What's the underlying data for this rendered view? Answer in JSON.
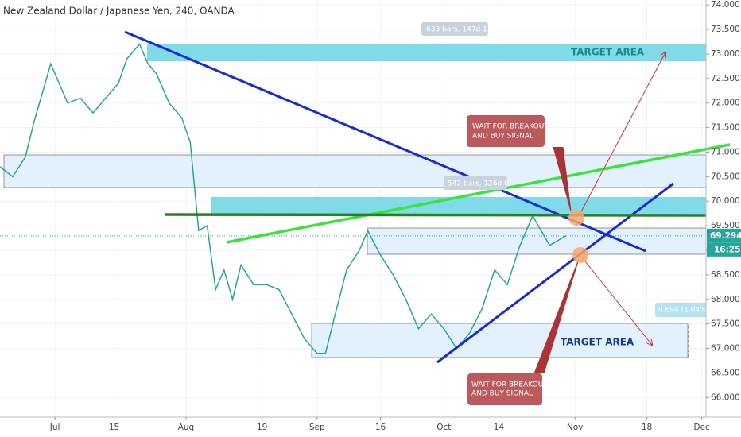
{
  "chart_data": {
    "type": "line",
    "title": "New Zealand Dollar / Japanese Yen, 240, OANDA",
    "color": "#26a69a",
    "x": [
      -13,
      -10,
      -7,
      -5,
      -3,
      -1,
      1,
      3,
      6,
      9,
      12,
      15,
      17,
      20,
      22,
      24,
      27,
      30,
      32,
      34,
      36,
      38,
      40,
      42,
      44,
      47,
      50,
      53,
      56,
      59,
      62,
      64,
      66,
      69,
      72,
      74,
      77,
      80,
      83,
      86,
      89,
      92,
      95,
      98,
      101,
      104,
      107,
      110,
      113,
      115,
      117,
      119,
      121
    ],
    "values": [
      70.7,
      70.5,
      70.9,
      71.6,
      72.2,
      72.8,
      72.4,
      72.0,
      72.1,
      71.8,
      72.1,
      72.4,
      72.9,
      73.2,
      72.8,
      72.6,
      72.0,
      71.7,
      71.2,
      69.4,
      69.5,
      68.2,
      68.6,
      68.0,
      68.7,
      68.3,
      68.3,
      68.2,
      67.7,
      67.2,
      66.9,
      66.9,
      67.6,
      68.6,
      69.0,
      69.4,
      68.9,
      68.5,
      68.0,
      67.4,
      67.7,
      67.4,
      67.0,
      67.3,
      67.8,
      68.6,
      68.3,
      69.1,
      69.7,
      69.4,
      69.1,
      69.2,
      69.3
    ],
    "xlim": [
      -13,
      154
    ],
    "xticks": [
      {
        "value": 0,
        "label": "Jul"
      },
      {
        "value": 14,
        "label": "15"
      },
      {
        "value": 31,
        "label": "Aug"
      },
      {
        "value": 49,
        "label": "19"
      },
      {
        "value": 62,
        "label": "Sep"
      },
      {
        "value": 77,
        "label": "16"
      },
      {
        "value": 92,
        "label": "Oct"
      },
      {
        "value": 105,
        "label": "14"
      },
      {
        "value": 123,
        "label": "Nov"
      },
      {
        "value": 140,
        "label": "18"
      },
      {
        "value": 153,
        "label": "Dec"
      }
    ],
    "ylim": [
      65.6,
      74.1
    ],
    "yticks": [
      {
        "value": 66,
        "label": "66.000"
      },
      {
        "value": 66.5,
        "label": "66.500"
      },
      {
        "value": 67,
        "label": "67.000"
      },
      {
        "value": 67.5,
        "label": "67.500"
      },
      {
        "value": 68,
        "label": "68.000"
      },
      {
        "value": 68.5,
        "label": "68.500"
      },
      {
        "value": 69,
        "label": "69.000"
      },
      {
        "value": 69.5,
        "label": "69.500"
      },
      {
        "value": 70,
        "label": "70.000"
      },
      {
        "value": 70.5,
        "label": "70.500"
      },
      {
        "value": 71,
        "label": "71.000"
      },
      {
        "value": 71.5,
        "label": "71.500"
      },
      {
        "value": 72,
        "label": "72.000"
      },
      {
        "value": 72.5,
        "label": "72.500"
      },
      {
        "value": 73,
        "label": "73.000"
      },
      {
        "value": 73.5,
        "label": "73.500"
      },
      {
        "value": 74,
        "label": "74.000"
      }
    ],
    "last_price": 69.294,
    "countdown": "16:25",
    "annotations": {
      "range_top": "633 bars, 147d 13h",
      "range_mid": "542 bars, 126d 9h",
      "range_small": "0.694 (1.04%) 69",
      "target_top": "TARGET AREA",
      "target_bottom": "TARGET AREA",
      "wait_top": [
        "WAIT FOR BREAKOUT",
        "AND BUY SIGNAL"
      ],
      "wait_bottom": [
        "WAIT FOR BREAKOUT",
        "AND BUY SIGNAL"
      ]
    }
  }
}
